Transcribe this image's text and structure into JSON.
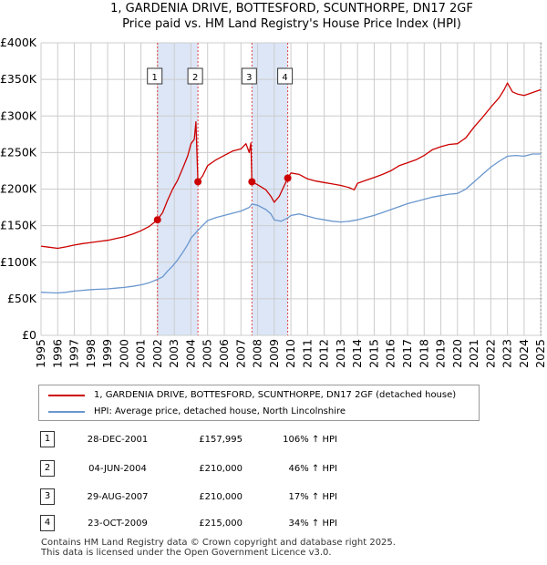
{
  "title_line1": "1, GARDENIA DRIVE, BOTTESFORD, SCUNTHORPE, DN17 2GF",
  "title_line2": "Price paid vs. HM Land Registry's House Price Index (HPI)",
  "colors": {
    "property": "#cc0000",
    "hpi": "#6a97cf",
    "shade": "#dce6f7",
    "vline": "#e04040",
    "grid": "#cccccc"
  },
  "chart_data": {
    "type": "line",
    "title": "Price paid vs. HM Land Registry's House Price Index (HPI)",
    "xlabel": "",
    "ylabel": "",
    "xlim": [
      1995.0,
      2025.1
    ],
    "ylim": [
      0,
      400000
    ],
    "y_ticks": [
      {
        "value": 0,
        "label": "£0"
      },
      {
        "value": 50000,
        "label": "£50K"
      },
      {
        "value": 100000,
        "label": "£100K"
      },
      {
        "value": 150000,
        "label": "£150K"
      },
      {
        "value": 200000,
        "label": "£200K"
      },
      {
        "value": 250000,
        "label": "£250K"
      },
      {
        "value": 300000,
        "label": "£300K"
      },
      {
        "value": 350000,
        "label": "£350K"
      },
      {
        "value": 400000,
        "label": "£400K"
      }
    ],
    "x_ticks": [
      "1995",
      "1996",
      "1997",
      "1998",
      "1999",
      "2000",
      "2001",
      "2002",
      "2003",
      "2004",
      "2005",
      "2006",
      "2007",
      "2008",
      "2009",
      "2010",
      "2011",
      "2012",
      "2013",
      "2014",
      "2015",
      "2016",
      "2017",
      "2018",
      "2019",
      "2020",
      "2021",
      "2022",
      "2023",
      "2024",
      "2025"
    ],
    "series": [
      {
        "name": "1, GARDENIA DRIVE, BOTTESFORD, SCUNTHORPE, DN17 2GF (detached house)",
        "color": "#cc0000",
        "points": [
          [
            1995.0,
            122000
          ],
          [
            1995.5,
            120500
          ],
          [
            1996.0,
            119000
          ],
          [
            1996.5,
            121000
          ],
          [
            1997.0,
            123500
          ],
          [
            1997.5,
            125500
          ],
          [
            1998.0,
            127000
          ],
          [
            1998.5,
            128500
          ],
          [
            1999.0,
            130000
          ],
          [
            1999.5,
            132500
          ],
          [
            2000.0,
            135000
          ],
          [
            2000.5,
            138500
          ],
          [
            2001.0,
            143000
          ],
          [
            2001.5,
            149000
          ],
          [
            2001.99,
            157995
          ],
          [
            2002.3,
            168000
          ],
          [
            2002.6,
            185000
          ],
          [
            2002.9,
            200000
          ],
          [
            2003.2,
            212000
          ],
          [
            2003.5,
            228000
          ],
          [
            2003.8,
            245000
          ],
          [
            2004.0,
            262000
          ],
          [
            2004.2,
            268000
          ],
          [
            2004.3,
            292000
          ],
          [
            2004.42,
            210000
          ],
          [
            2004.7,
            218000
          ],
          [
            2005.0,
            232000
          ],
          [
            2005.5,
            240000
          ],
          [
            2006.0,
            246000
          ],
          [
            2006.5,
            252000
          ],
          [
            2007.0,
            255000
          ],
          [
            2007.3,
            262000
          ],
          [
            2007.5,
            250000
          ],
          [
            2007.6,
            263000
          ],
          [
            2007.66,
            210000
          ],
          [
            2008.0,
            206000
          ],
          [
            2008.5,
            199000
          ],
          [
            2008.8,
            190000
          ],
          [
            2009.0,
            182000
          ],
          [
            2009.3,
            190000
          ],
          [
            2009.5,
            200000
          ],
          [
            2009.81,
            215000
          ],
          [
            2010.0,
            222000
          ],
          [
            2010.5,
            220000
          ],
          [
            2011.0,
            214000
          ],
          [
            2011.5,
            211000
          ],
          [
            2012.0,
            209000
          ],
          [
            2012.5,
            207000
          ],
          [
            2013.0,
            205000
          ],
          [
            2013.5,
            202000
          ],
          [
            2013.8,
            199000
          ],
          [
            2014.0,
            208000
          ],
          [
            2014.5,
            212000
          ],
          [
            2015.0,
            216000
          ],
          [
            2015.5,
            220000
          ],
          [
            2016.0,
            225000
          ],
          [
            2016.5,
            232000
          ],
          [
            2017.0,
            236000
          ],
          [
            2017.5,
            240000
          ],
          [
            2018.0,
            246000
          ],
          [
            2018.5,
            254000
          ],
          [
            2019.0,
            258000
          ],
          [
            2019.5,
            261000
          ],
          [
            2020.0,
            262000
          ],
          [
            2020.5,
            270000
          ],
          [
            2021.0,
            285000
          ],
          [
            2021.5,
            298000
          ],
          [
            2022.0,
            312000
          ],
          [
            2022.5,
            325000
          ],
          [
            2022.8,
            336000
          ],
          [
            2023.0,
            345000
          ],
          [
            2023.3,
            333000
          ],
          [
            2023.6,
            330000
          ],
          [
            2024.0,
            328000
          ],
          [
            2024.5,
            332000
          ],
          [
            2025.0,
            336000
          ]
        ]
      },
      {
        "name": "HPI: Average price, detached house, North Lincolnshire",
        "color": "#6a97cf",
        "points": [
          [
            1995.0,
            59000
          ],
          [
            1995.5,
            58500
          ],
          [
            1996.0,
            58000
          ],
          [
            1996.5,
            59000
          ],
          [
            1997.0,
            60500
          ],
          [
            1997.5,
            61500
          ],
          [
            1998.0,
            62500
          ],
          [
            1998.5,
            63000
          ],
          [
            1999.0,
            63500
          ],
          [
            1999.5,
            64500
          ],
          [
            2000.0,
            65500
          ],
          [
            2000.5,
            67000
          ],
          [
            2001.0,
            69000
          ],
          [
            2001.5,
            72000
          ],
          [
            2001.99,
            76500
          ],
          [
            2002.3,
            80000
          ],
          [
            2002.6,
            88000
          ],
          [
            2002.9,
            95000
          ],
          [
            2003.2,
            103000
          ],
          [
            2003.5,
            113000
          ],
          [
            2003.8,
            124000
          ],
          [
            2004.0,
            133000
          ],
          [
            2004.42,
            143500
          ],
          [
            2004.7,
            150000
          ],
          [
            2005.0,
            157000
          ],
          [
            2005.5,
            161000
          ],
          [
            2006.0,
            164000
          ],
          [
            2006.5,
            167000
          ],
          [
            2007.0,
            170000
          ],
          [
            2007.5,
            175000
          ],
          [
            2007.66,
            179500
          ],
          [
            2008.0,
            178000
          ],
          [
            2008.5,
            172000
          ],
          [
            2008.8,
            166000
          ],
          [
            2009.0,
            158000
          ],
          [
            2009.4,
            156000
          ],
          [
            2009.81,
            160500
          ],
          [
            2010.0,
            164000
          ],
          [
            2010.5,
            166000
          ],
          [
            2011.0,
            163000
          ],
          [
            2011.5,
            160000
          ],
          [
            2012.0,
            158000
          ],
          [
            2012.5,
            156000
          ],
          [
            2013.0,
            155000
          ],
          [
            2013.5,
            156000
          ],
          [
            2014.0,
            158000
          ],
          [
            2014.5,
            161000
          ],
          [
            2015.0,
            164000
          ],
          [
            2015.5,
            168000
          ],
          [
            2016.0,
            172000
          ],
          [
            2016.5,
            176000
          ],
          [
            2017.0,
            180000
          ],
          [
            2017.5,
            183000
          ],
          [
            2018.0,
            186000
          ],
          [
            2018.5,
            189000
          ],
          [
            2019.0,
            191000
          ],
          [
            2019.5,
            193000
          ],
          [
            2020.0,
            194000
          ],
          [
            2020.5,
            200000
          ],
          [
            2021.0,
            210000
          ],
          [
            2021.5,
            220000
          ],
          [
            2022.0,
            230000
          ],
          [
            2022.5,
            238000
          ],
          [
            2023.0,
            245000
          ],
          [
            2023.5,
            246000
          ],
          [
            2024.0,
            245000
          ],
          [
            2024.5,
            248000
          ],
          [
            2025.0,
            248000
          ]
        ]
      }
    ],
    "transactions": [
      {
        "num": "1",
        "x": 2001.99,
        "price_value": 157995
      },
      {
        "num": "2",
        "x": 2004.42,
        "price_value": 210000
      },
      {
        "num": "3",
        "x": 2007.66,
        "price_value": 210000
      },
      {
        "num": "4",
        "x": 2009.81,
        "price_value": 215000
      }
    ],
    "shaded_ranges": [
      [
        2001.99,
        2004.42
      ],
      [
        2007.66,
        2009.81
      ]
    ],
    "legend": [
      "1, GARDENIA DRIVE, BOTTESFORD, SCUNTHORPE, DN17 2GF (detached house)",
      "HPI: Average price, detached house, North Lincolnshire"
    ]
  },
  "legend": {
    "property_label": "1, GARDENIA DRIVE, BOTTESFORD, SCUNTHORPE, DN17 2GF (detached house)",
    "hpi_label": "HPI: Average price, detached house, North Lincolnshire"
  },
  "transactions_table": [
    {
      "num": "1",
      "date": "28-DEC-2001",
      "price": "£157,995",
      "hpi": "106% ↑ HPI"
    },
    {
      "num": "2",
      "date": "04-JUN-2004",
      "price": "£210,000",
      "hpi": "46% ↑ HPI"
    },
    {
      "num": "3",
      "date": "29-AUG-2007",
      "price": "£210,000",
      "hpi": "17% ↑ HPI"
    },
    {
      "num": "4",
      "date": "23-OCT-2009",
      "price": "£215,000",
      "hpi": "34% ↑ HPI"
    }
  ],
  "footer": {
    "line1": "Contains HM Land Registry data © Crown copyright and database right 2025.",
    "line2": "This data is licensed under the Open Government Licence v3.0."
  }
}
